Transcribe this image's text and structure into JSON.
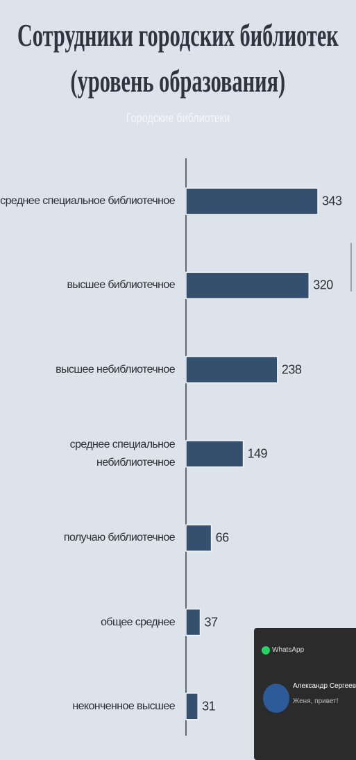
{
  "chart_data": {
    "type": "hbar",
    "title": "Сотрудники городских библиотек\n(уровень образования)",
    "subtitle": "Городские библиотеки",
    "categories": [
      "среднее специальное библиотечное",
      "высшее библиотечное",
      "высшее небиблиотечное",
      "среднее специальное\nнебиблиотечное",
      "получаю библиотечное",
      "общее среднее",
      "неконченное высшее"
    ],
    "values": [
      343,
      320,
      238,
      149,
      66,
      37,
      31
    ],
    "color": "#34506e"
  },
  "notification": {
    "app": "WhatsApp",
    "sender": "Александр Сергеевич Ка",
    "message": "Женя, привет!"
  }
}
